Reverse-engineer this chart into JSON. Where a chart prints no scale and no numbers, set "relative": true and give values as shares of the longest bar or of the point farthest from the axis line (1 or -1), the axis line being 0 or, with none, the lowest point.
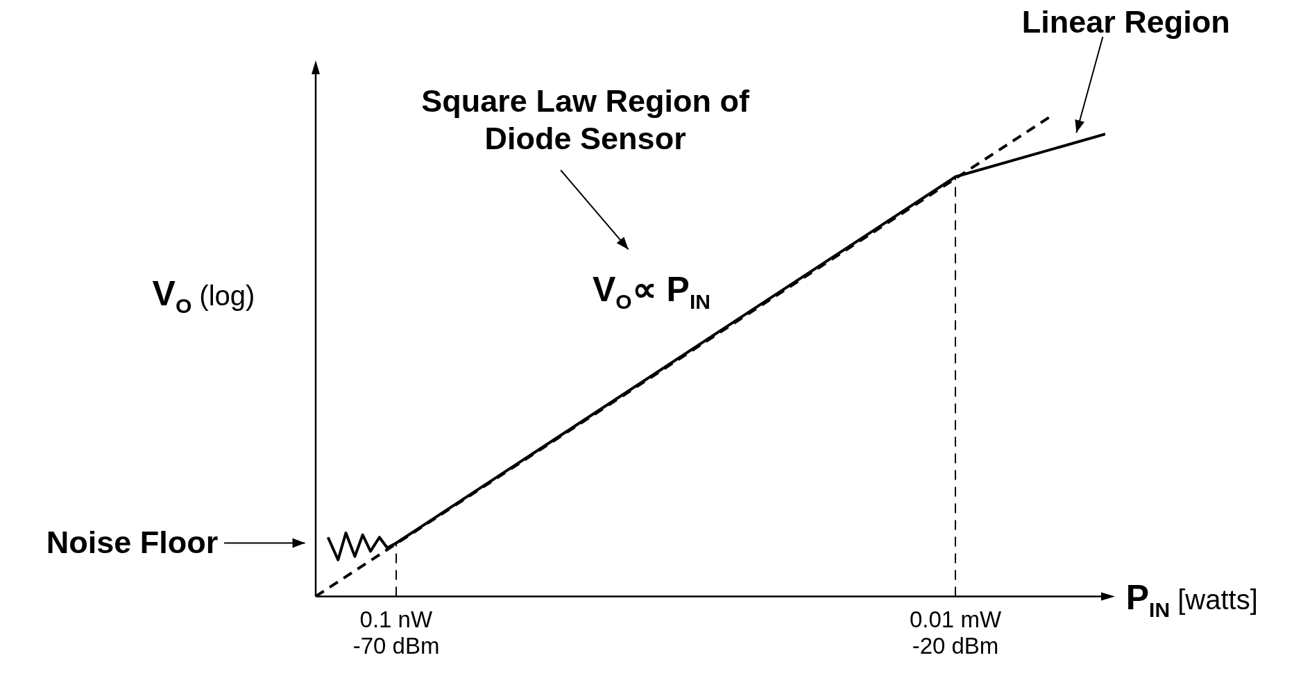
{
  "chart_data": {
    "type": "line",
    "relative": true,
    "xlabel": "P$_{IN}$ [watts]",
    "ylabel": "V$_{O}$ (log)",
    "xlim": [
      -77.2,
      -6.6
    ],
    "xticks": [
      {
        "value": -70,
        "label": "-70 dBm"
      },
      {
        "value": -20,
        "label": "-20 dBm"
      }
    ],
    "grid": false,
    "legend": false,
    "marker": "none",
    "series": [
      {
        "color": "#000000",
        "line_style": "solid",
        "x": [
          -76.1,
          -75.2,
          -74.5,
          -73.7,
          -73.0,
          -72.3,
          -71.5,
          -70.8,
          -70,
          -20,
          -6.6
        ],
        "values": [
          0.123,
          0.076,
          0.132,
          0.083,
          0.128,
          0.094,
          0.123,
          0.101,
          0.111,
          0.873,
          0.962
        ]
      },
      {
        "color": "#000000",
        "line_style": "dashed",
        "x": [
          -77.2,
          -11.4
        ],
        "values": [
          0,
          1
        ]
      }
    ],
    "ref_lines": [
      {
        "axis": "x",
        "value": -70,
        "line_style": "dashed",
        "color": "#000000"
      },
      {
        "axis": "x",
        "value": -20,
        "line_style": "dashed",
        "color": "#000000"
      }
    ],
    "annotations": [
      "Square Law Region of\nDiode Sensor",
      "V$_{O}$∝ P$_{IN}$",
      "Linear Region",
      "Noise Floor",
      "0.1 nW",
      "0.01 mW"
    ]
  }
}
